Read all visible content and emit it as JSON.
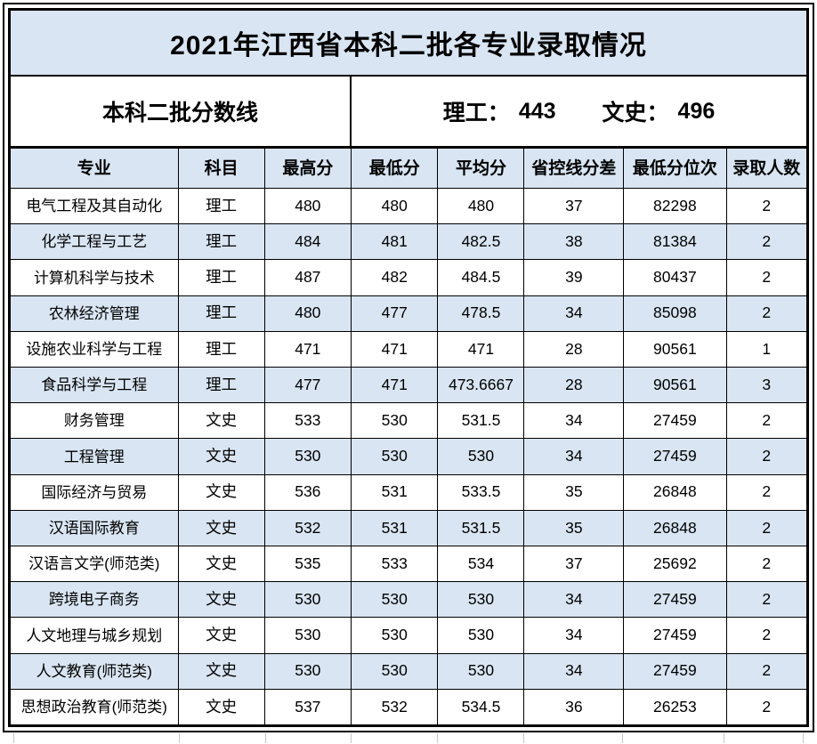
{
  "title": "2021年江西省本科二批各专业录取情况",
  "score_line": {
    "label": "本科二批分数线",
    "ligong_label": "理工：",
    "ligong_value": "443",
    "wenshi_label": "文史：",
    "wenshi_value": "496"
  },
  "table": {
    "columns": [
      "专业",
      "科目",
      "最高分",
      "最低分",
      "平均分",
      "省控线分差",
      "最低分位次",
      "录取人数"
    ],
    "rows": [
      [
        "电气工程及其自动化",
        "理工",
        "480",
        "480",
        "480",
        "37",
        "82298",
        "2"
      ],
      [
        "化学工程与工艺",
        "理工",
        "484",
        "481",
        "482.5",
        "38",
        "81384",
        "2"
      ],
      [
        "计算机科学与技术",
        "理工",
        "487",
        "482",
        "484.5",
        "39",
        "80437",
        "2"
      ],
      [
        "农林经济管理",
        "理工",
        "480",
        "477",
        "478.5",
        "34",
        "85098",
        "2"
      ],
      [
        "设施农业科学与工程",
        "理工",
        "471",
        "471",
        "471",
        "28",
        "90561",
        "1"
      ],
      [
        "食品科学与工程",
        "理工",
        "477",
        "471",
        "473.6667",
        "28",
        "90561",
        "3"
      ],
      [
        "财务管理",
        "文史",
        "533",
        "530",
        "531.5",
        "34",
        "27459",
        "2"
      ],
      [
        "工程管理",
        "文史",
        "530",
        "530",
        "530",
        "34",
        "27459",
        "2"
      ],
      [
        "国际经济与贸易",
        "文史",
        "536",
        "531",
        "533.5",
        "35",
        "26848",
        "2"
      ],
      [
        "汉语国际教育",
        "文史",
        "532",
        "531",
        "531.5",
        "35",
        "26848",
        "2"
      ],
      [
        "汉语言文学(师范类)",
        "文史",
        "535",
        "533",
        "534",
        "37",
        "25692",
        "2"
      ],
      [
        "跨境电子商务",
        "文史",
        "530",
        "530",
        "530",
        "34",
        "27459",
        "2"
      ],
      [
        "人文地理与城乡规划",
        "文史",
        "530",
        "530",
        "530",
        "34",
        "27459",
        "2"
      ],
      [
        "人文教育(师范类)",
        "文史",
        "530",
        "530",
        "530",
        "34",
        "27459",
        "2"
      ],
      [
        "思想政治教育(师范类)",
        "文史",
        "537",
        "532",
        "534.5",
        "36",
        "26253",
        "2"
      ]
    ]
  },
  "colors": {
    "accent_fill": "#d9e5f2",
    "border": "#000000",
    "ghost_gridline": "#c6c6c6"
  }
}
